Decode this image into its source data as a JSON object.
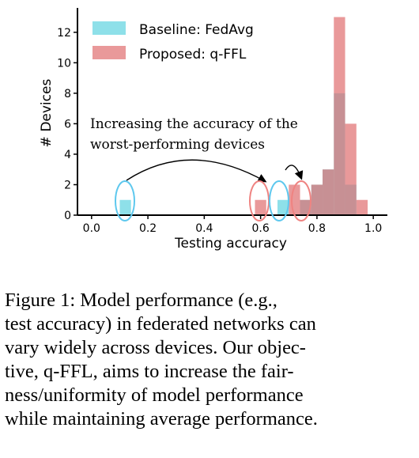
{
  "chart_data": {
    "type": "bar",
    "xlabel": "Testing accuracy",
    "ylabel": "# Devices",
    "xlim": [
      -0.05,
      1.05
    ],
    "ylim": [
      0,
      13.6
    ],
    "xticks": [
      "0.0",
      "0.2",
      "0.4",
      "0.6",
      "0.8",
      "1.0"
    ],
    "yticks": [
      "0",
      "2",
      "4",
      "6",
      "8",
      "10",
      "12"
    ],
    "bin_width": 0.04,
    "legend_position": "top-left",
    "series": [
      {
        "name": "Baseline: FedAvg",
        "color": "#5ed3e0",
        "x": [
          0.12,
          0.68,
          0.76,
          0.8,
          0.84,
          0.88,
          0.92
        ],
        "values": [
          1,
          1,
          1,
          2,
          3,
          8,
          2
        ]
      },
      {
        "name": "Proposed: q-FFL",
        "color": "#e06d6f",
        "x": [
          0.6,
          0.72,
          0.76,
          0.8,
          0.84,
          0.88,
          0.92,
          0.96
        ],
        "values": [
          1,
          2,
          1,
          2,
          3,
          13,
          6,
          1
        ]
      }
    ],
    "annotations": [
      {
        "text_lines": [
          "Increasing the accuracy of the",
          "worst-performing devices"
        ]
      }
    ],
    "circles": [
      {
        "color": "#5ec8ee"
      },
      {
        "color": "#ef8381"
      },
      {
        "color": "#5ec8ee"
      },
      {
        "color": "#ef8381"
      }
    ]
  },
  "caption": {
    "label": "Figure 1:",
    "lines": [
      "Figure 1:  Model performance (e.g.,",
      "test accuracy) in federated networks can",
      "vary widely across devices.  Our objec-",
      "tive, q-FFL, aims to increase the fair-",
      "ness/uniformity of model performance",
      "while maintaining average performance."
    ]
  }
}
